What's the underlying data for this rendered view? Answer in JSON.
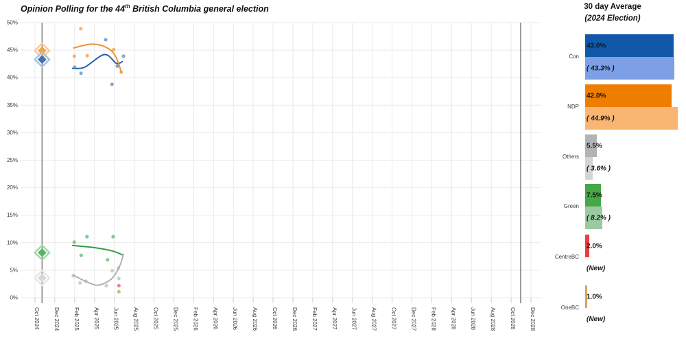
{
  "title": {
    "prefix": "Opinion Polling for the 44",
    "superscript": "th",
    "suffix": " British Columbia general election"
  },
  "legend": {
    "title": "30 day Average",
    "subtitle": "(2024 Election)",
    "rows": [
      {
        "party": "Con",
        "current_label": "43.0%",
        "current_value": 43.0,
        "current_color": "#1158a8",
        "previous_label": "( 43.3% )",
        "previous_value": 43.3,
        "previous_color": "#7d9fe6",
        "is_new": false
      },
      {
        "party": "NDP",
        "current_label": "42.0%",
        "current_value": 42.0,
        "current_color": "#ef7d00",
        "previous_label": "( 44.9% )",
        "previous_value": 44.9,
        "previous_color": "#f9b572",
        "is_new": false
      },
      {
        "party": "Others",
        "current_label": "5.5%",
        "current_value": 5.5,
        "current_color": "#b3b3b3",
        "previous_label": "( 3.6% )",
        "previous_value": 3.6,
        "previous_color": "#d4d4d4",
        "is_new": false
      },
      {
        "party": "Green",
        "current_label": "7.5%",
        "current_value": 7.5,
        "current_color": "#44a848",
        "previous_label": "( 8.2% )",
        "previous_value": 8.2,
        "previous_color": "#9ccaa0",
        "is_new": false
      },
      {
        "party": "CentreBC",
        "current_label": "2.0%",
        "current_value": 2.0,
        "current_color": "#ee3b3f",
        "previous_label": "(New)",
        "previous_value": null,
        "previous_color": null,
        "is_new": true
      },
      {
        "party": "OneBC",
        "current_label": "1.0%",
        "current_value": 1.0,
        "current_color": "#d8a55f",
        "previous_label": "(New)",
        "previous_value": null,
        "previous_color": null,
        "is_new": true
      }
    ]
  },
  "chart_data": {
    "type": "scatter",
    "title": "Opinion Polling for the 44th British Columbia general election",
    "ylim": [
      0,
      50
    ],
    "y_tick_step": 5,
    "y_tick_labels": [
      "0%",
      "5%",
      "10%",
      "15%",
      "20%",
      "25%",
      "30%",
      "35%",
      "40%",
      "45%",
      "50%"
    ],
    "x_tick_labels": [
      "Oct 2024",
      "Dec 2024",
      "Feb 2025",
      "Apr 2025",
      "Jun 2025",
      "Aug 2025",
      "Oct 2025",
      "Dec 2025",
      "Feb 2026",
      "Apr 2026",
      "Jun 2026",
      "Aug 2026",
      "Oct 2026",
      "Dec 2026",
      "Feb 2027",
      "Apr 2027",
      "Jun 2027",
      "Aug 2027",
      "Oct 2027",
      "Dec 2027",
      "Feb 2028",
      "Apr 2028",
      "Jun 2028",
      "Aug 2028",
      "Oct 2028",
      "Dec 2028"
    ],
    "grid": true,
    "grid_color": "#e9e9e9",
    "event_lines": [
      {
        "name": "2024-election",
        "t": 0.36,
        "color": "#919191"
      },
      {
        "name": "next-election",
        "t": 24.48,
        "color": "#919191"
      }
    ],
    "election_2024_markers": [
      {
        "party": "NDP",
        "value": 44.9,
        "fill": "#f2a24f",
        "halo": "#f8cd9a"
      },
      {
        "party": "Con",
        "value": 43.3,
        "fill": "#3f74b4",
        "halo": "#a9c4e4"
      },
      {
        "party": "Green",
        "value": 8.2,
        "fill": "#5cb364",
        "halo": "#aad6ad"
      },
      {
        "party": "Others",
        "value": 3.6,
        "fill": "#d8d8d8",
        "halo": "#e7e7e7"
      }
    ],
    "series": [
      {
        "name": "Con",
        "line_color": "#1f60a8",
        "dot_color": "#3f79bb",
        "dot_opacity": 0.65,
        "points": [
          [
            2.0,
            41.9
          ],
          [
            2.32,
            40.8
          ],
          [
            3.56,
            46.9
          ],
          [
            3.88,
            38.8
          ],
          [
            4.15,
            42.1
          ],
          [
            4.46,
            43.9
          ]
        ],
        "trend": [
          [
            1.9,
            41.7
          ],
          [
            2.5,
            41.9
          ],
          [
            3.5,
            44.2
          ],
          [
            4.1,
            42.6
          ],
          [
            4.4,
            42.9
          ]
        ]
      },
      {
        "name": "NDP",
        "line_color": "#f0922d",
        "dot_color": "#f08b2d",
        "dot_opacity": 0.65,
        "points": [
          [
            1.98,
            43.9
          ],
          [
            2.31,
            48.9
          ],
          [
            2.63,
            44.0
          ],
          [
            3.97,
            45.1
          ],
          [
            4.35,
            41.0
          ]
        ],
        "trend": [
          [
            1.94,
            45.4
          ],
          [
            2.9,
            46.1
          ],
          [
            3.7,
            45.3
          ],
          [
            4.1,
            43.6
          ],
          [
            4.35,
            41.0
          ]
        ]
      },
      {
        "name": "Green",
        "line_color": "#2f9e41",
        "dot_color": "#4aa852",
        "dot_opacity": 0.65,
        "points": [
          [
            1.98,
            10.1
          ],
          [
            2.33,
            7.7
          ],
          [
            2.62,
            11.1
          ],
          [
            3.66,
            6.9
          ],
          [
            3.94,
            11.1
          ]
        ],
        "trend": [
          [
            1.9,
            9.5
          ],
          [
            3.0,
            9.1
          ],
          [
            3.9,
            8.5
          ],
          [
            4.4,
            7.8
          ]
        ]
      },
      {
        "name": "Others",
        "line_color": "#b0b0b0",
        "dot_color": "#a8a8a8",
        "dot_opacity": 0.55,
        "points": [
          [
            1.93,
            4.0
          ],
          [
            2.27,
            2.7
          ],
          [
            2.56,
            3.0
          ],
          [
            3.6,
            2.2
          ],
          [
            3.89,
            4.9
          ],
          [
            4.2,
            5.4
          ],
          [
            4.23,
            3.5
          ]
        ],
        "trend": [
          [
            1.93,
            4.1
          ],
          [
            2.6,
            2.9
          ],
          [
            3.2,
            2.3
          ],
          [
            3.85,
            3.4
          ],
          [
            4.25,
            5.6
          ],
          [
            4.46,
            7.9
          ]
        ]
      },
      {
        "name": "CentreBC",
        "line_color": "#ee3b3f",
        "dot_color": "#e4798f",
        "dot_opacity": 0.9,
        "points": [
          [
            4.23,
            2.2
          ]
        ],
        "trend": []
      },
      {
        "name": "OneBC",
        "line_color": "#d8a55f",
        "dot_color": "#bfbc60",
        "dot_opacity": 0.9,
        "points": [
          [
            4.23,
            1.1
          ]
        ],
        "trend": []
      }
    ]
  }
}
